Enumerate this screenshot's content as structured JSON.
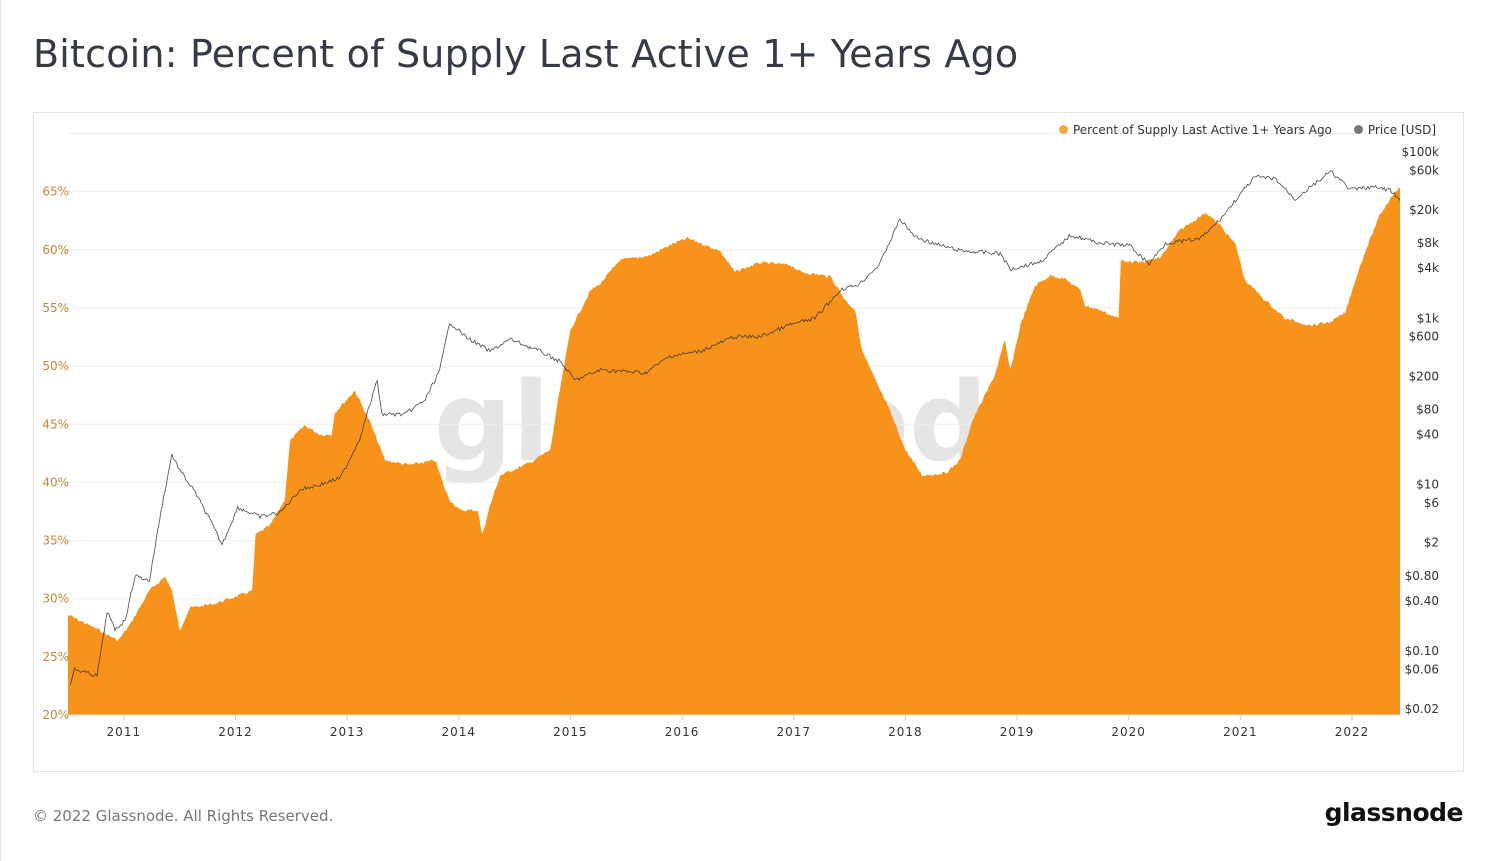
{
  "title": "Bitcoin: Percent of Supply Last Active 1+ Years Ago",
  "footer": "© 2022 Glassnode. All Rights Reserved.",
  "logo": "glassnode",
  "watermark": "glassnode",
  "colors": {
    "supply": "#f7931a",
    "price": "#2b2b2b",
    "left_axis": "#c7883a",
    "grid": "#eeeeee"
  },
  "chart_data": {
    "type": "area",
    "title": "Bitcoin: Percent of Supply Last Active 1+ Years Ago",
    "legend_position": "top-right",
    "grid": true,
    "x_ticks": [
      "2011",
      "2012",
      "2013",
      "2014",
      "2015",
      "2016",
      "2017",
      "2018",
      "2019",
      "2020",
      "2021",
      "2022"
    ],
    "xlim": [
      2010.5,
      2022.43
    ],
    "left_axis": {
      "ylim": [
        20,
        70
      ],
      "ticks": [
        "20%",
        "25%",
        "30%",
        "35%",
        "40%",
        "45%",
        "50%",
        "55%",
        "60%",
        "65%"
      ],
      "tick_values": [
        20,
        25,
        30,
        35,
        40,
        45,
        50,
        55,
        60,
        65
      ]
    },
    "right_axis": {
      "scale": "log",
      "ylim": [
        0.02,
        100000
      ],
      "ticks": [
        "$100k",
        "$60k",
        "$20k",
        "$8k",
        "$4k",
        "$1k",
        "$600",
        "$200",
        "$80",
        "$40",
        "$10",
        "$6",
        "$2",
        "$0.80",
        "$0.40",
        "$0.10",
        "$0.06",
        "$0.02"
      ],
      "tick_values": [
        100000,
        60000,
        20000,
        8000,
        4000,
        1000,
        600,
        200,
        80,
        40,
        10,
        6,
        2,
        0.8,
        0.4,
        0.1,
        0.06,
        0.02
      ]
    },
    "series": [
      {
        "name": "Percent of Supply Last Active 1+ Years Ago",
        "type": "area",
        "axis": "left",
        "color": "#f7931a",
        "points": [
          [
            2010.5,
            28.6
          ],
          [
            2010.78,
            27.3
          ],
          [
            2010.95,
            26.4
          ],
          [
            2011.05,
            27.7
          ],
          [
            2011.23,
            30.7
          ],
          [
            2011.37,
            31.9
          ],
          [
            2011.43,
            30.7
          ],
          [
            2011.5,
            27.3
          ],
          [
            2011.59,
            29.2
          ],
          [
            2011.82,
            29.6
          ],
          [
            2012.04,
            30.3
          ],
          [
            2012.15,
            30.7
          ],
          [
            2012.18,
            35.5
          ],
          [
            2012.31,
            36.3
          ],
          [
            2012.44,
            38.5
          ],
          [
            2012.49,
            43.6
          ],
          [
            2012.62,
            44.9
          ],
          [
            2012.76,
            44.1
          ],
          [
            2012.86,
            44.1
          ],
          [
            2012.89,
            46.0
          ],
          [
            2013.07,
            47.9
          ],
          [
            2013.2,
            45.3
          ],
          [
            2013.34,
            41.9
          ],
          [
            2013.56,
            41.5
          ],
          [
            2013.79,
            41.9
          ],
          [
            2013.88,
            39.3
          ],
          [
            2013.92,
            38.5
          ],
          [
            2014.01,
            37.6
          ],
          [
            2014.17,
            37.6
          ],
          [
            2014.21,
            35.5
          ],
          [
            2014.28,
            38.0
          ],
          [
            2014.37,
            40.6
          ],
          [
            2014.64,
            41.7
          ],
          [
            2014.82,
            42.8
          ],
          [
            2014.89,
            47.1
          ],
          [
            2015.0,
            53.1
          ],
          [
            2015.18,
            56.5
          ],
          [
            2015.27,
            57.1
          ],
          [
            2015.44,
            59.1
          ],
          [
            2015.71,
            59.5
          ],
          [
            2015.89,
            60.4
          ],
          [
            2016.05,
            61.0
          ],
          [
            2016.34,
            59.9
          ],
          [
            2016.47,
            58.1
          ],
          [
            2016.7,
            58.9
          ],
          [
            2016.97,
            58.7
          ],
          [
            2017.06,
            58.1
          ],
          [
            2017.33,
            57.7
          ],
          [
            2017.46,
            55.7
          ],
          [
            2017.55,
            54.8
          ],
          [
            2017.61,
            51.4
          ],
          [
            2017.73,
            48.8
          ],
          [
            2017.86,
            46.2
          ],
          [
            2018.0,
            42.8
          ],
          [
            2018.15,
            40.6
          ],
          [
            2018.36,
            40.8
          ],
          [
            2018.49,
            41.9
          ],
          [
            2018.6,
            45.3
          ],
          [
            2018.8,
            49.2
          ],
          [
            2018.89,
            52.2
          ],
          [
            2018.94,
            49.6
          ],
          [
            2019.03,
            53.5
          ],
          [
            2019.16,
            56.9
          ],
          [
            2019.3,
            57.8
          ],
          [
            2019.43,
            57.5
          ],
          [
            2019.57,
            56.5
          ],
          [
            2019.61,
            55.2
          ],
          [
            2019.75,
            54.8
          ],
          [
            2019.91,
            54.1
          ],
          [
            2019.93,
            59.1
          ],
          [
            2020.1,
            58.9
          ],
          [
            2020.28,
            59.3
          ],
          [
            2020.46,
            61.7
          ],
          [
            2020.69,
            63.2
          ],
          [
            2020.82,
            62.1
          ],
          [
            2020.96,
            60.4
          ],
          [
            2021.04,
            57.4
          ],
          [
            2021.22,
            55.7
          ],
          [
            2021.4,
            54.1
          ],
          [
            2021.63,
            53.5
          ],
          [
            2021.81,
            53.8
          ],
          [
            2021.94,
            54.6
          ],
          [
            2022.03,
            57.4
          ],
          [
            2022.12,
            59.9
          ],
          [
            2022.25,
            63.0
          ],
          [
            2022.39,
            65.1
          ],
          [
            2022.43,
            65.3
          ]
        ]
      },
      {
        "name": "Price [USD]",
        "type": "line",
        "axis": "right",
        "color": "#2b2b2b",
        "points": [
          [
            2010.52,
            0.04
          ],
          [
            2010.56,
            0.06
          ],
          [
            2010.76,
            0.05
          ],
          [
            2010.81,
            0.13
          ],
          [
            2010.85,
            0.3
          ],
          [
            2010.92,
            0.18
          ],
          [
            2011.01,
            0.23
          ],
          [
            2011.1,
            0.8
          ],
          [
            2011.23,
            0.7
          ],
          [
            2011.32,
            3.8
          ],
          [
            2011.37,
            8.7
          ],
          [
            2011.43,
            23
          ],
          [
            2011.5,
            15
          ],
          [
            2011.64,
            8
          ],
          [
            2011.77,
            3.8
          ],
          [
            2011.88,
            1.9
          ],
          [
            2012.02,
            5.3
          ],
          [
            2012.22,
            4.1
          ],
          [
            2012.4,
            4.6
          ],
          [
            2012.58,
            8.7
          ],
          [
            2012.76,
            10
          ],
          [
            2012.94,
            12
          ],
          [
            2013.11,
            35
          ],
          [
            2013.27,
            180
          ],
          [
            2013.31,
            70
          ],
          [
            2013.52,
            70
          ],
          [
            2013.7,
            105
          ],
          [
            2013.83,
            240
          ],
          [
            2013.92,
            900
          ],
          [
            2014.06,
            600
          ],
          [
            2014.28,
            400
          ],
          [
            2014.46,
            560
          ],
          [
            2014.73,
            400
          ],
          [
            2014.91,
            300
          ],
          [
            2015.04,
            180
          ],
          [
            2015.27,
            240
          ],
          [
            2015.67,
            220
          ],
          [
            2015.89,
            350
          ],
          [
            2016.16,
            400
          ],
          [
            2016.47,
            600
          ],
          [
            2016.7,
            600
          ],
          [
            2016.97,
            840
          ],
          [
            2017.19,
            1000
          ],
          [
            2017.42,
            2200
          ],
          [
            2017.59,
            2600
          ],
          [
            2017.77,
            4500
          ],
          [
            2017.95,
            15500
          ],
          [
            2018.09,
            9500
          ],
          [
            2018.27,
            7800
          ],
          [
            2018.49,
            6500
          ],
          [
            2018.85,
            6000
          ],
          [
            2018.94,
            3900
          ],
          [
            2019.21,
            4800
          ],
          [
            2019.48,
            10000
          ],
          [
            2019.75,
            8000
          ],
          [
            2020.01,
            7500
          ],
          [
            2020.18,
            4500
          ],
          [
            2020.33,
            8000
          ],
          [
            2020.64,
            9000
          ],
          [
            2020.82,
            15500
          ],
          [
            2021.0,
            31000
          ],
          [
            2021.13,
            50000
          ],
          [
            2021.31,
            48000
          ],
          [
            2021.49,
            27000
          ],
          [
            2021.63,
            38000
          ],
          [
            2021.81,
            58000
          ],
          [
            2021.99,
            35000
          ],
          [
            2022.17,
            38000
          ],
          [
            2022.34,
            35000
          ],
          [
            2022.43,
            26000
          ]
        ]
      }
    ]
  }
}
